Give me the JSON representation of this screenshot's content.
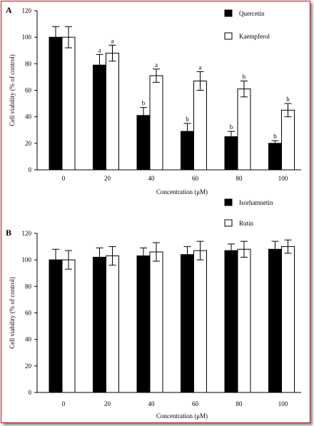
{
  "chart_data": [
    {
      "panel": "A",
      "type": "bar",
      "categories": [
        "0",
        "20",
        "40",
        "60",
        "80",
        "100"
      ],
      "xlabel": "Concentration (μM)",
      "ylabel": "Cell viability (% of control)",
      "ylim": [
        0,
        120
      ],
      "yticks": [
        "0",
        "20",
        "40",
        "60",
        "80",
        "100",
        "120"
      ],
      "legend_placement": "top-right",
      "series": [
        {
          "name": "Quercetin",
          "color": "#000000",
          "values": [
            100,
            79,
            41,
            29,
            25,
            20
          ],
          "errors": [
            8,
            8,
            6,
            6,
            4,
            2
          ],
          "labels": [
            "",
            "a",
            "b",
            "b",
            "b",
            "b"
          ]
        },
        {
          "name": "Kaempferol",
          "color": "#ffffff",
          "values": [
            100,
            88,
            71,
            67,
            61,
            45
          ],
          "errors": [
            8,
            6,
            5,
            7,
            6,
            5
          ],
          "labels": [
            "",
            "a",
            "a",
            "a",
            "b",
            "b"
          ]
        }
      ]
    },
    {
      "panel": "B",
      "type": "bar",
      "categories": [
        "0",
        "20",
        "40",
        "60",
        "80",
        "100"
      ],
      "xlabel": "Concentration (μM)",
      "ylabel": "Cell viability (% of control)",
      "ylim": [
        0,
        120
      ],
      "yticks": [
        "0",
        "20",
        "40",
        "60",
        "80",
        "100",
        "120"
      ],
      "legend_placement": "top-right",
      "series": [
        {
          "name": "Isorhamnetin",
          "color": "#000000",
          "values": [
            100,
            102,
            103,
            104,
            107,
            108
          ],
          "errors": [
            8,
            7,
            6,
            6,
            5,
            6
          ],
          "labels": [
            "",
            "",
            "",
            "",
            "",
            ""
          ]
        },
        {
          "name": "Rutin",
          "color": "#ffffff",
          "values": [
            100,
            103,
            106,
            107,
            108,
            110
          ],
          "errors": [
            7,
            7,
            7,
            7,
            6,
            5
          ],
          "labels": [
            "",
            "",
            "",
            "",
            "",
            ""
          ]
        }
      ]
    }
  ]
}
